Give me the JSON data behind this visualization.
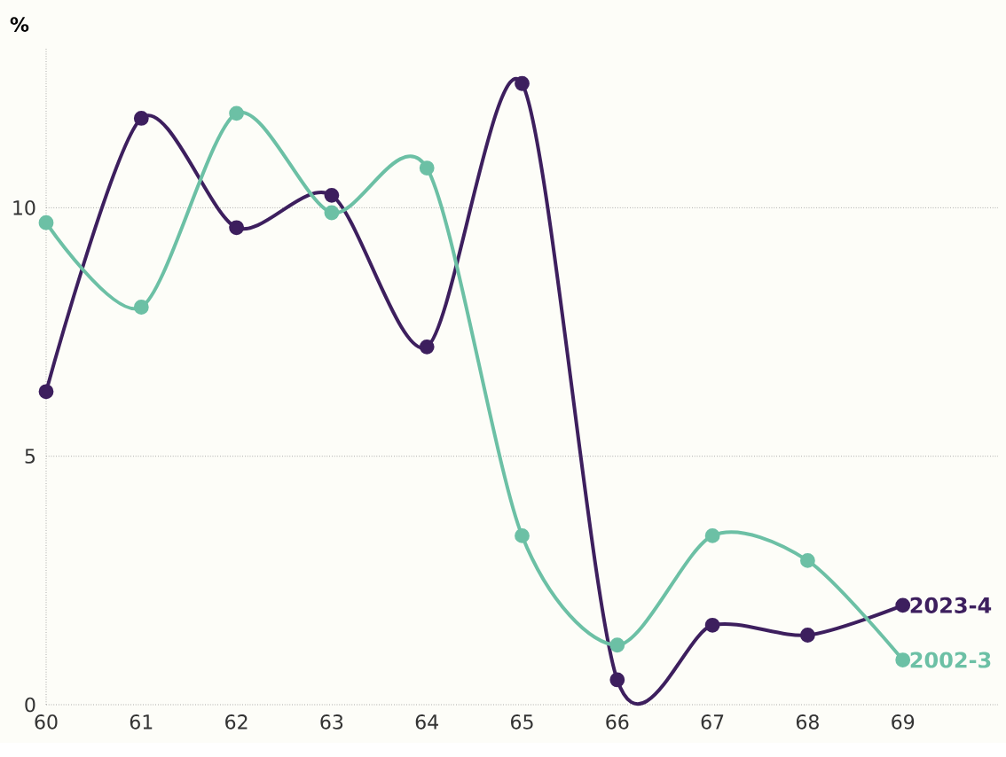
{
  "chart_data": {
    "type": "line",
    "ylabel": "%",
    "x": [
      60,
      61,
      62,
      63,
      64,
      65,
      66,
      67,
      68,
      69
    ],
    "xlim": [
      60,
      70
    ],
    "xticks": [
      60,
      61,
      62,
      63,
      64,
      65,
      66,
      67,
      68,
      69
    ],
    "ylim": [
      0,
      13.2
    ],
    "yticks": [
      0,
      5,
      10
    ],
    "grid": "y",
    "marker": "circle",
    "line_style": "solid",
    "series": [
      {
        "name": "2023-4",
        "color": "#3d1f5e",
        "values": [
          6.3,
          11.8,
          9.6,
          10.25,
          7.2,
          12.5,
          0.5,
          1.6,
          1.4,
          2.0
        ]
      },
      {
        "name": "2002-3",
        "color": "#6cc0a5",
        "values": [
          9.7,
          8.0,
          11.9,
          9.9,
          10.8,
          3.4,
          1.2,
          3.4,
          2.9,
          0.9
        ]
      }
    ]
  }
}
